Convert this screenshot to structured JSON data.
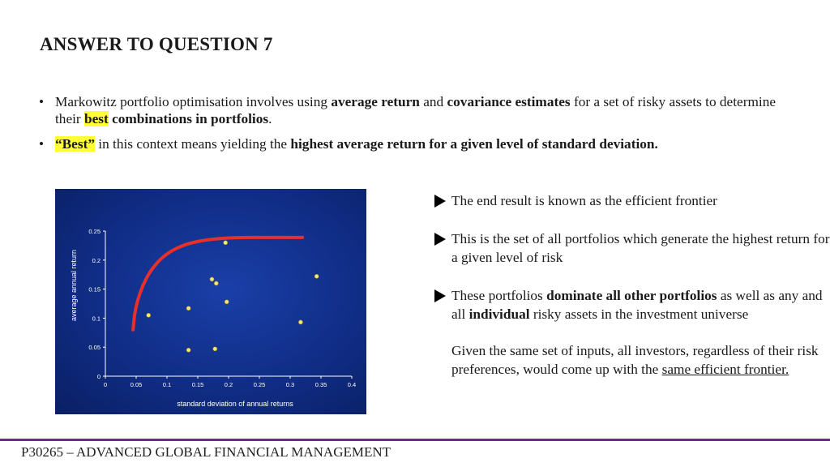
{
  "title": "ANSWER TO QUESTION 7",
  "bullets": [
    {
      "segments": [
        {
          "text": "Markowitz portfolio optimisation involves using ",
          "style": "normal"
        },
        {
          "text": "average return",
          "style": "bold"
        },
        {
          "text": " and ",
          "style": "normal"
        },
        {
          "text": "covariance estimates",
          "style": "bold"
        },
        {
          "text": " for a set of risky assets to determine their ",
          "style": "normal"
        },
        {
          "text": "best",
          "style": "bold-highlight"
        },
        {
          "text": " combinations in portfolios",
          "style": "bold"
        },
        {
          "text": ".",
          "style": "normal"
        }
      ]
    },
    {
      "segments": [
        {
          "text": "“Best”",
          "style": "bold-highlight"
        },
        {
          "text": " in this context means yielding the ",
          "style": "normal"
        },
        {
          "text": "highest average return for a given level of standard deviation.",
          "style": "bold"
        }
      ]
    }
  ],
  "right_panel": {
    "items": [
      {
        "arrow": true,
        "segments": [
          {
            "text": "The end result is known as the efficient frontier",
            "style": "normal"
          }
        ]
      },
      {
        "arrow": true,
        "segments": [
          {
            "text": "This is the set of all portfolios which generate the highest return for a given level of risk",
            "style": "normal"
          }
        ]
      },
      {
        "arrow": true,
        "segments": [
          {
            "text": "These portfolios ",
            "style": "normal"
          },
          {
            "text": "dominate all other portfolios",
            "style": "bold"
          },
          {
            "text": " as well as any and all ",
            "style": "normal"
          },
          {
            "text": "individual",
            "style": "bold"
          },
          {
            "text": " risky assets in the investment universe",
            "style": "normal"
          }
        ]
      },
      {
        "arrow": false,
        "segments": [
          {
            "text": "Given the same set of inputs, all investors, regardless of their risk preferences, would come up with the ",
            "style": "normal"
          },
          {
            "text": "same efficient frontier.",
            "style": "underline"
          }
        ]
      }
    ]
  },
  "chart_data": {
    "type": "scatter",
    "title": "",
    "xlabel": "standard deviation of annual returns",
    "ylabel": "average annual return",
    "xlim": [
      0,
      0.4
    ],
    "ylim": [
      0,
      0.25
    ],
    "x_ticks": [
      "0",
      "0.05",
      "0.1",
      "0.15",
      "0.2",
      "0.25",
      "0.3",
      "0.35",
      "0.4"
    ],
    "y_ticks": [
      "0",
      "0.05",
      "0.1",
      "0.15",
      "0.2",
      "0.25"
    ],
    "grid": false,
    "background": "#1a3a9c",
    "points": [
      {
        "x": 0.07,
        "y": 0.105
      },
      {
        "x": 0.135,
        "y": 0.117
      },
      {
        "x": 0.135,
        "y": 0.045
      },
      {
        "x": 0.173,
        "y": 0.167
      },
      {
        "x": 0.18,
        "y": 0.16
      },
      {
        "x": 0.178,
        "y": 0.047
      },
      {
        "x": 0.195,
        "y": 0.23
      },
      {
        "x": 0.197,
        "y": 0.128
      },
      {
        "x": 0.317,
        "y": 0.093
      },
      {
        "x": 0.343,
        "y": 0.172
      }
    ],
    "frontier": [
      [
        0.045,
        0.08
      ],
      [
        0.047,
        0.105
      ],
      [
        0.052,
        0.13
      ],
      [
        0.06,
        0.155
      ],
      [
        0.072,
        0.18
      ],
      [
        0.09,
        0.203
      ],
      [
        0.11,
        0.218
      ],
      [
        0.135,
        0.229
      ],
      [
        0.17,
        0.236
      ],
      [
        0.21,
        0.239
      ],
      [
        0.26,
        0.239
      ],
      [
        0.32,
        0.239
      ]
    ],
    "colors": {
      "points": "#f5e67a",
      "frontier": "#e8302a",
      "axes": "#ffffff"
    }
  },
  "footer": {
    "text": "P30265 – ADVANCED GLOBAL FINANCIAL MANAGEMENT",
    "rule_color": "#6b2a8e"
  }
}
